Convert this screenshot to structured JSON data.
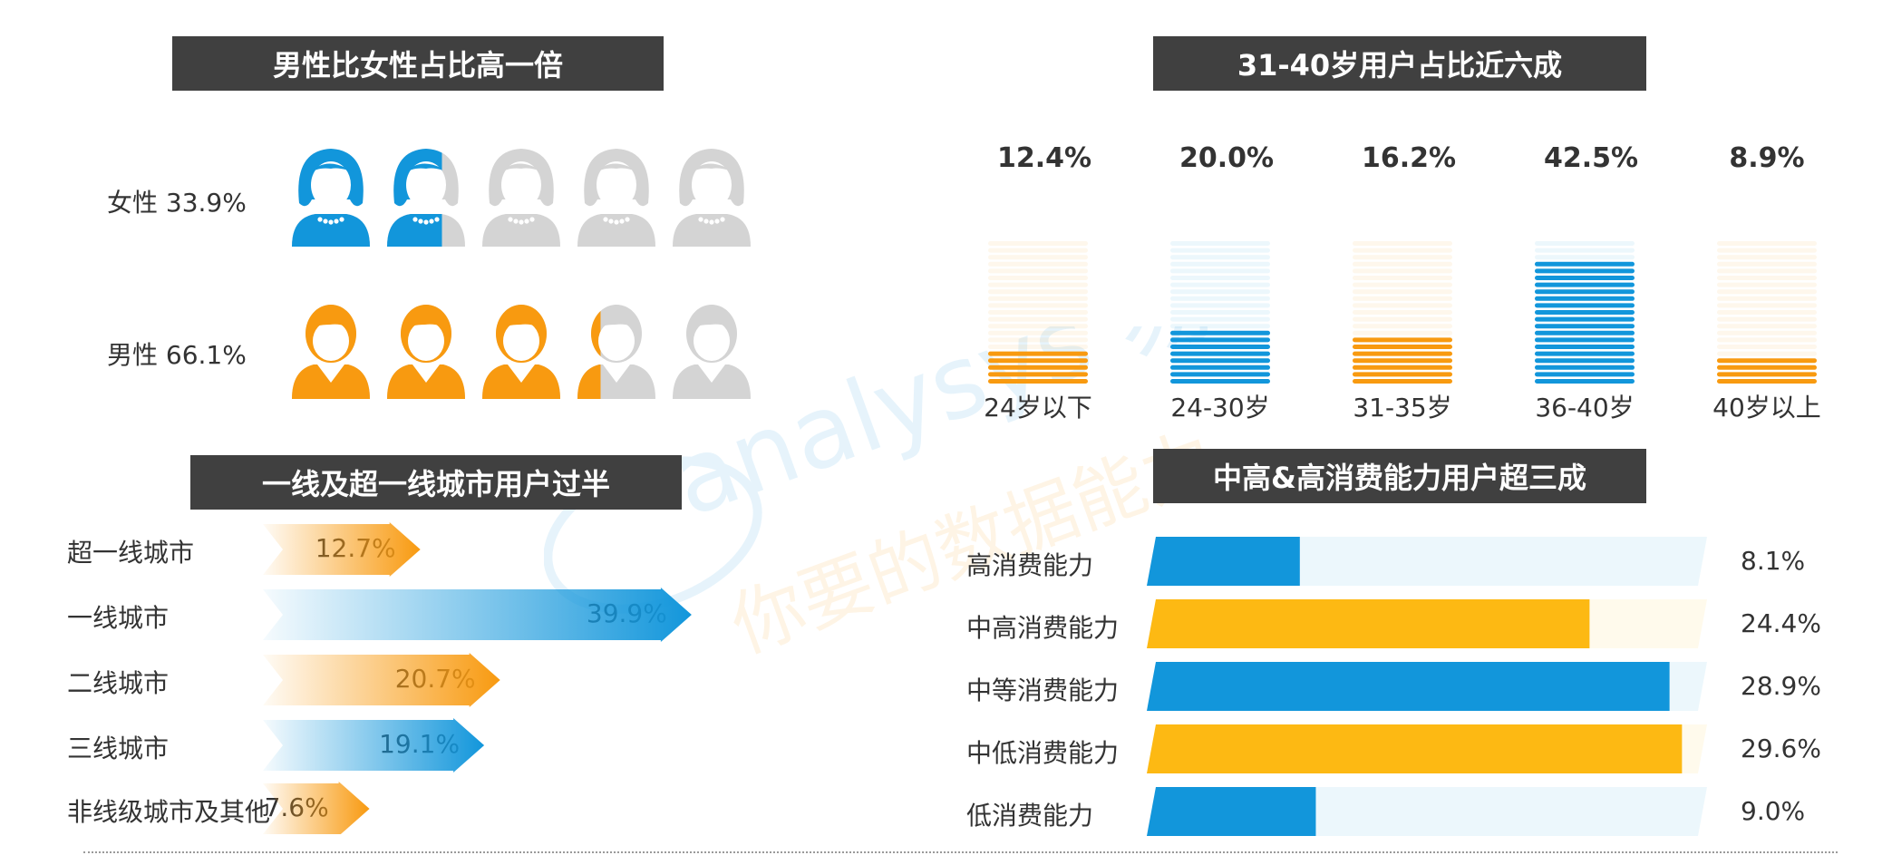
{
  "colors": {
    "blue": "#1296db",
    "orange": "#f89a10",
    "yellow": "#fdb913",
    "grey": "#d4d4d4",
    "title_bg": "#404040"
  },
  "watermark": {
    "brand": "analysys 易观",
    "slogan": "你要的数据能力"
  },
  "gender": {
    "title": "男性比女性占比高一倍",
    "rows": [
      {
        "label": "女性 33.9%",
        "value": 33.9,
        "icon": "female-user-icon"
      },
      {
        "label": "男性 66.1%",
        "value": 66.1,
        "icon": "male-user-icon"
      }
    ]
  },
  "age": {
    "title": "31-40岁用户占比近六成",
    "bars": [
      {
        "category": "24岁以下",
        "value_label": "12.4%",
        "value": 12.4
      },
      {
        "category": "24-30岁",
        "value_label": "20.0%",
        "value": 20.0
      },
      {
        "category": "31-35岁",
        "value_label": "16.2%",
        "value": 16.2
      },
      {
        "category": "36-40岁",
        "value_label": "42.5%",
        "value": 42.5
      },
      {
        "category": "40岁以上",
        "value_label": "8.9%",
        "value": 8.9
      }
    ]
  },
  "city": {
    "title": "一线及超一线城市用户过半",
    "rows": [
      {
        "label": "超一线城市",
        "value_label": "12.7%",
        "value": 12.7
      },
      {
        "label": "一线城市",
        "value_label": "39.9%",
        "value": 39.9
      },
      {
        "label": "二线城市",
        "value_label": "20.7%",
        "value": 20.7
      },
      {
        "label": "三线城市",
        "value_label": "19.1%",
        "value": 19.1
      },
      {
        "label": "非线级城市及其他",
        "value_label": "7.6%",
        "value": 7.6
      }
    ]
  },
  "consumption": {
    "title": "中高&高消费能力用户超三成",
    "rows": [
      {
        "label": "高消费能力",
        "value_label": "8.1%",
        "value": 8.1
      },
      {
        "label": "中高消费能力",
        "value_label": "24.4%",
        "value": 24.4
      },
      {
        "label": "中等消费能力",
        "value_label": "28.9%",
        "value": 28.9
      },
      {
        "label": "中低消费能力",
        "value_label": "29.6%",
        "value": 29.6
      },
      {
        "label": "低消费能力",
        "value_label": "9.0%",
        "value": 9.0
      }
    ]
  },
  "chart_data": [
    {
      "type": "bar",
      "title": "男性比女性占比高一倍",
      "categories": [
        "女性",
        "男性"
      ],
      "values": [
        33.9,
        66.1
      ],
      "unit": "%"
    },
    {
      "type": "bar",
      "title": "31-40岁用户占比近六成",
      "categories": [
        "24岁以下",
        "24-30岁",
        "31-35岁",
        "36-40岁",
        "40岁以上"
      ],
      "values": [
        12.4,
        20.0,
        16.2,
        42.5,
        8.9
      ],
      "unit": "%"
    },
    {
      "type": "bar",
      "title": "一线及超一线城市用户过半",
      "categories": [
        "超一线城市",
        "一线城市",
        "二线城市",
        "三线城市",
        "非线级城市及其他"
      ],
      "values": [
        12.7,
        39.9,
        20.7,
        19.1,
        7.6
      ],
      "unit": "%"
    },
    {
      "type": "bar",
      "title": "中高&高消费能力用户超三成",
      "categories": [
        "高消费能力",
        "中高消费能力",
        "中等消费能力",
        "中低消费能力",
        "低消费能力"
      ],
      "values": [
        8.1,
        24.4,
        28.9,
        29.6,
        9.0
      ],
      "unit": "%"
    }
  ]
}
